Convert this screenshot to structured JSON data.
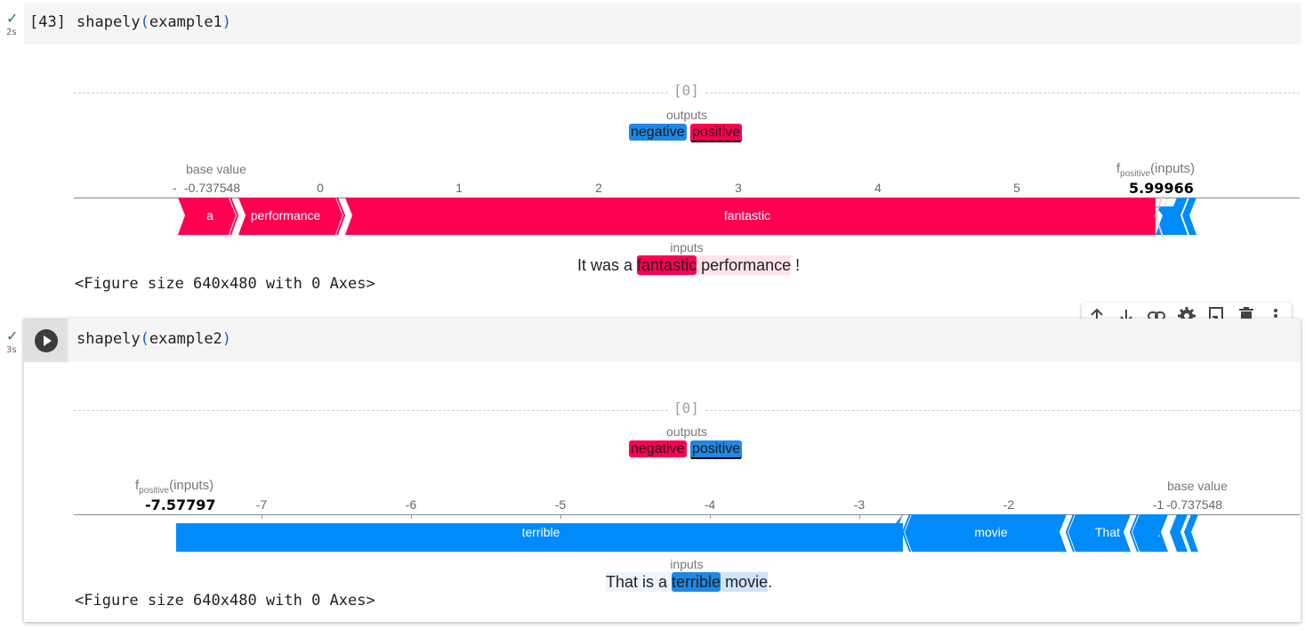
{
  "cells": [
    {
      "status_duration": "2s",
      "exec_label": "[43]",
      "code": {
        "func": "shapely",
        "open": "(",
        "arg": "example1",
        "close": ")"
      },
      "output": {
        "index_label": "[0]",
        "outputs_label": "outputs",
        "output_tags": [
          "negative",
          "positive"
        ],
        "base_value_label": "base value",
        "base_value": "-0.737548",
        "fx_prefix": "f",
        "fx_sub": "positive",
        "fx_suffix": "(inputs)",
        "fx_value": "5.99966",
        "ticks": [
          "0",
          "1",
          "2",
          "3",
          "4",
          "5"
        ],
        "truncated_tick": "-",
        "bar_labels": [
          "a",
          "performance",
          "fantastic"
        ],
        "inputs_label": "inputs",
        "sentence": [
          "It was a ",
          "fantastic",
          " performance",
          " !"
        ],
        "figure_text": "<Figure size 640x480 with 0 Axes>"
      }
    },
    {
      "status_duration": "3s",
      "code": {
        "func": "shapely",
        "open": "(",
        "arg": "example2",
        "close": ")"
      },
      "output": {
        "index_label": "[0]",
        "outputs_label": "outputs",
        "output_tags": [
          "negative",
          "positive"
        ],
        "base_value_label": "base value",
        "base_value": "-0.737548",
        "fx_prefix": "f",
        "fx_sub": "positive",
        "fx_suffix": "(inputs)",
        "fx_value": "-7.57797",
        "ticks": [
          "-7",
          "-6",
          "-5",
          "-4",
          "-3",
          "-2",
          "-1"
        ],
        "bar_labels": [
          "terrible",
          "movie",
          "That",
          "."
        ],
        "inputs_label": "inputs",
        "sentence": [
          "That is a ",
          "terrible",
          " movie",
          "."
        ],
        "figure_text": "<Figure size 640x480 with 0 Axes>"
      }
    }
  ],
  "toolbar": {
    "icons": [
      "arrow-up-icon",
      "arrow-down-icon",
      "link-icon",
      "gear-icon",
      "mirror-cell-icon",
      "trash-icon",
      "more-vert-icon"
    ]
  },
  "colors": {
    "pos": "#ff0051",
    "neg": "#008bfb",
    "check": "#2e7d32"
  }
}
